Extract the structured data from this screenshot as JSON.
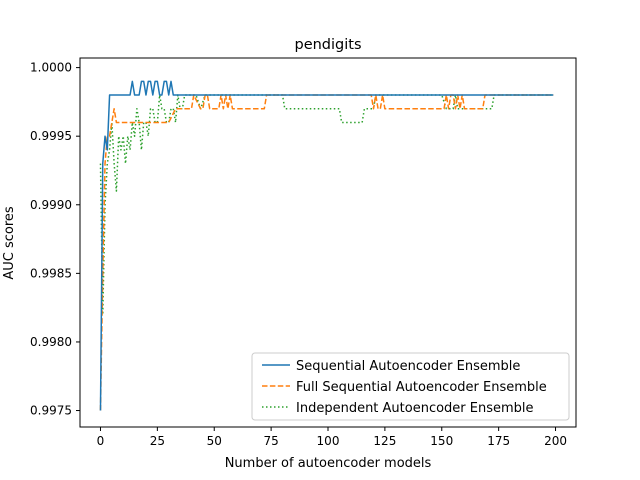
{
  "chart_data": {
    "type": "line",
    "title": "pendigits",
    "xlabel": "Number of autoencoder models",
    "ylabel": "AUC scores",
    "xlim": [
      -9,
      209
    ],
    "ylim": [
      0.99738,
      1.00007
    ],
    "xticks": [
      0,
      25,
      50,
      75,
      100,
      125,
      150,
      175,
      200
    ],
    "xtick_labels": [
      "0",
      "25",
      "50",
      "75",
      "100",
      "125",
      "150",
      "175",
      "200"
    ],
    "yticks": [
      0.9975,
      0.998,
      0.9985,
      0.999,
      0.9995,
      1.0
    ],
    "ytick_labels": [
      "0.9975",
      "0.9980",
      "0.9985",
      "0.9990",
      "0.9995",
      "1.0000"
    ],
    "grid": false,
    "legend_position": "lower-right",
    "series": [
      {
        "name": "Sequential Autoencoder Ensemble",
        "color": "#1f77b4",
        "dash": "solid",
        "x": [
          0,
          1,
          2,
          3,
          4,
          5,
          10,
          12,
          13,
          14,
          15,
          16,
          17,
          18,
          19,
          20,
          21,
          22,
          23,
          24,
          25,
          26,
          27,
          28,
          29,
          30,
          31,
          32,
          199
        ],
        "y": [
          0.9975,
          0.9993,
          0.9995,
          0.9994,
          0.9998,
          0.9998,
          0.9998,
          0.9998,
          0.9998,
          0.9999,
          0.9998,
          0.9998,
          0.9998,
          0.9999,
          0.9999,
          0.9998,
          0.9999,
          0.9999,
          0.9998,
          0.9999,
          0.9999,
          0.9998,
          0.9998,
          0.9999,
          0.9999,
          0.9998,
          0.9999,
          0.9998,
          0.9998
        ]
      },
      {
        "name": "Full Sequential Autoencoder Ensemble",
        "color": "#ff7f0e",
        "dash": "dashed",
        "x": [
          0,
          1,
          2,
          3,
          4,
          5,
          6,
          7,
          8,
          9,
          10,
          14,
          15,
          18,
          20,
          30,
          33,
          34,
          40,
          41,
          44,
          45,
          46,
          47,
          48,
          52,
          53,
          54,
          55,
          56,
          57,
          58,
          60,
          72,
          73,
          119,
          120,
          121,
          122,
          123,
          124,
          125,
          126,
          150,
          151,
          152,
          153,
          154,
          155,
          156,
          157,
          158,
          159,
          160,
          161,
          162,
          165,
          168,
          169,
          199
        ],
        "y": [
          0.9975,
          0.9985,
          0.9993,
          0.9995,
          0.9995,
          0.9996,
          0.9997,
          0.9996,
          0.9996,
          0.9996,
          0.9996,
          0.9996,
          0.9996,
          0.9996,
          0.9996,
          0.9996,
          0.9997,
          0.9997,
          0.9997,
          0.9998,
          0.9997,
          0.9997,
          0.9998,
          0.9998,
          0.9997,
          0.9997,
          0.9998,
          0.9997,
          0.9998,
          0.9997,
          0.9998,
          0.9997,
          0.9997,
          0.9997,
          0.9998,
          0.9998,
          0.9997,
          0.9998,
          0.9997,
          0.9997,
          0.9998,
          0.9997,
          0.9997,
          0.9997,
          0.9997,
          0.9998,
          0.9997,
          0.9998,
          0.9998,
          0.9997,
          0.9998,
          0.9997,
          0.9998,
          0.9997,
          0.9997,
          0.9997,
          0.9997,
          0.9997,
          0.9998,
          0.9998
        ]
      },
      {
        "name": "Independent Autoencoder Ensemble",
        "color": "#2ca02c",
        "dash": "dotted",
        "x": [
          0,
          1,
          2,
          3,
          4,
          5,
          6,
          7,
          8,
          9,
          10,
          11,
          12,
          13,
          14,
          15,
          16,
          17,
          18,
          19,
          20,
          21,
          22,
          23,
          24,
          25,
          26,
          27,
          28,
          29,
          30,
          31,
          32,
          33,
          34,
          35,
          36,
          37,
          38,
          40,
          42,
          44,
          46,
          48,
          50,
          55,
          60,
          65,
          70,
          76,
          80,
          81,
          82,
          100,
          101,
          105,
          106,
          107,
          115,
          116,
          117,
          120,
          121,
          122,
          123,
          124,
          130,
          140,
          150,
          152,
          153,
          155,
          156,
          157,
          160,
          165,
          170,
          172,
          173,
          199
        ],
        "y": [
          0.9993,
          0.9982,
          0.999,
          0.9993,
          0.9994,
          0.9996,
          0.9993,
          0.9991,
          0.9995,
          0.9994,
          0.9995,
          0.9993,
          0.9995,
          0.9994,
          0.9996,
          0.9995,
          0.9997,
          0.9996,
          0.9994,
          0.9996,
          0.9996,
          0.9995,
          0.9997,
          0.9997,
          0.9996,
          0.9996,
          0.9998,
          0.9997,
          0.9997,
          0.9996,
          0.9996,
          0.9997,
          0.9997,
          0.9996,
          0.9998,
          0.9997,
          0.9997,
          0.9998,
          0.9998,
          0.9998,
          0.9998,
          0.9997,
          0.9998,
          0.9998,
          0.9998,
          0.9998,
          0.9998,
          0.9998,
          0.9998,
          0.9998,
          0.9998,
          0.9997,
          0.9997,
          0.9997,
          0.9997,
          0.9997,
          0.9996,
          0.9996,
          0.9996,
          0.9997,
          0.9997,
          0.9997,
          0.9998,
          0.9998,
          0.9998,
          0.9998,
          0.9998,
          0.9998,
          0.9998,
          0.9997,
          0.9997,
          0.9997,
          0.9998,
          0.9997,
          0.9997,
          0.9997,
          0.9997,
          0.9997,
          0.9998,
          0.9998
        ]
      }
    ]
  }
}
